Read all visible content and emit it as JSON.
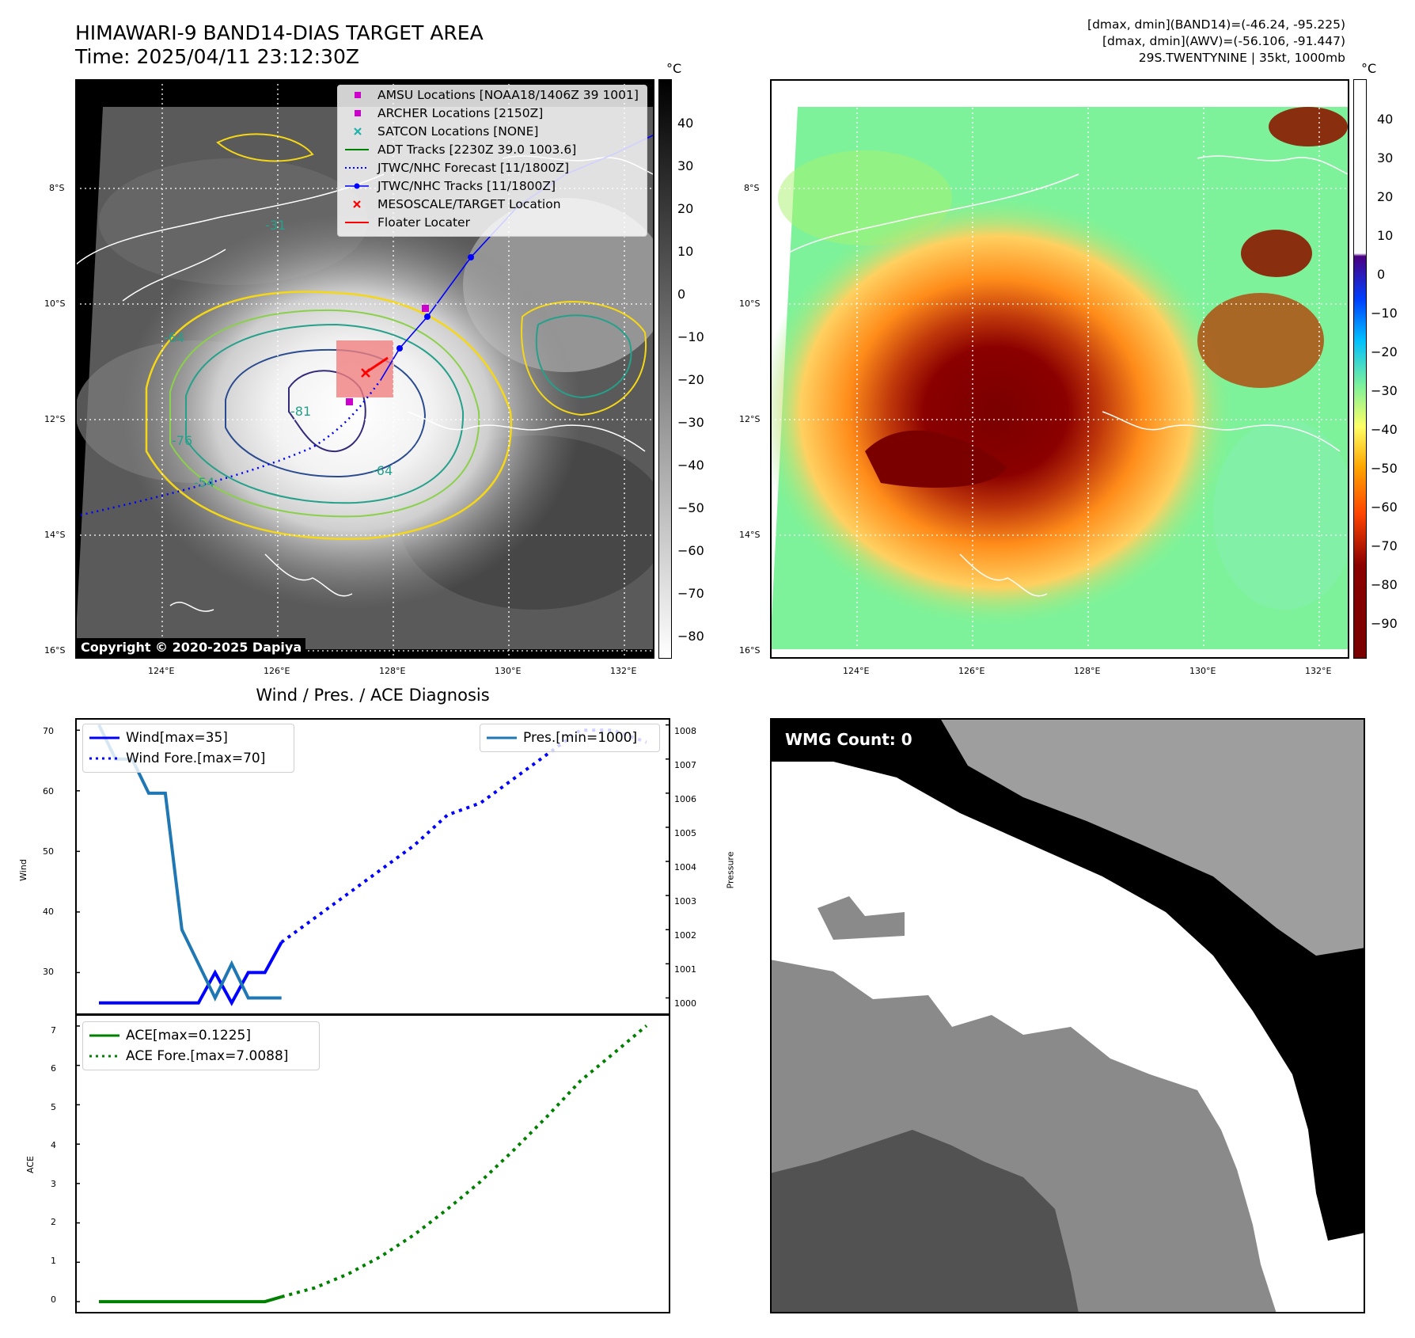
{
  "header": {
    "title_line1": "HIMAWARI-9 BAND14-DIAS TARGET AREA",
    "title_line2": "Time: 2025/04/11 23:12:30Z",
    "info_line1": "[dmax, dmin](BAND14)=(-46.24, -95.225)",
    "info_line2": "[dmax, dmin](AWV)=(-56.106, -91.447)",
    "info_line3": "29S.TWENTYNINE | 35kt, 1000mb"
  },
  "ir_panel": {
    "legend": [
      {
        "label": "AMSU Locations [NOAA18/1406Z 39 1001]",
        "color": "#cc00cc",
        "marker": "square"
      },
      {
        "label": "ARCHER Locations [2150Z]",
        "color": "#cc00cc",
        "marker": "square"
      },
      {
        "label": "SATCON Locations [NONE]",
        "color": "#20b2aa",
        "marker": "x"
      },
      {
        "label": "ADT Tracks [2230Z 39.0 1003.6]",
        "color": "#008000",
        "marker": "line"
      },
      {
        "label": "JTWC/NHC Forecast [11/1800Z]",
        "color": "#0000ff",
        "marker": "dotted"
      },
      {
        "label": "JTWC/NHC Tracks [11/1800Z]",
        "color": "#0000ff",
        "marker": "line-dot"
      },
      {
        "label": "MESOSCALE/TARGET Location",
        "color": "#ff0000",
        "marker": "x"
      },
      {
        "label": "Floater Locater",
        "color": "#ff0000",
        "marker": "line"
      }
    ],
    "copyright": "Copyright © 2020-2025 Dapiya",
    "contour_labels": [
      "-31",
      "-54",
      "-64",
      "-76",
      "-81"
    ],
    "colorbar_unit": "°C",
    "colorbar_ticks": [
      "40",
      "30",
      "20",
      "10",
      "0",
      "−10",
      "−20",
      "−30",
      "−40",
      "−50",
      "−60",
      "−70",
      "−80"
    ]
  },
  "awv_panel": {
    "colorbar_unit": "°C",
    "colorbar_ticks": [
      "40",
      "30",
      "20",
      "10",
      "0",
      "−10",
      "−20",
      "−30",
      "−40",
      "−50",
      "−60",
      "−70",
      "−80",
      "−90"
    ]
  },
  "map_axes": {
    "lat_ticks": [
      "8°S",
      "10°S",
      "12°S",
      "14°S",
      "16°S"
    ],
    "lon_ticks": [
      "124°E",
      "126°E",
      "128°E",
      "130°E",
      "132°E"
    ]
  },
  "diag_panel": {
    "title": "Wind / Pres. / ACE Diagnosis",
    "wind_ylabel": "Wind",
    "pres_ylabel": "Pressure",
    "ace_ylabel": "ACE",
    "wind_legend_1": "Wind[max=35]",
    "wind_legend_2": "Wind Fore.[max=70]",
    "pres_legend": "Pres.[min=1000]",
    "ace_legend_1": "ACE[max=0.1225]",
    "ace_legend_2": "ACE Fore.[max=7.0088]"
  },
  "wmg_panel": {
    "label": "WMG Count: 0"
  },
  "chart_data": [
    {
      "type": "line",
      "title": "Wind / Pres. / ACE Diagnosis",
      "ylabel": "Wind",
      "ylim": [
        23,
        72
      ],
      "yticks": [
        30,
        40,
        50,
        60,
        70
      ],
      "series": [
        {
          "name": "Wind[max=35]",
          "color": "#0000ff",
          "style": "solid",
          "x": [
            0,
            1,
            2,
            3,
            4,
            5,
            6,
            7,
            8,
            9,
            10,
            11
          ],
          "values": [
            25,
            25,
            25,
            25,
            25,
            25,
            25,
            30,
            25,
            30,
            30,
            35
          ]
        },
        {
          "name": "Wind Fore.[max=70]",
          "color": "#0000ff",
          "style": "dotted",
          "x": [
            11,
            13,
            15,
            17,
            19,
            21,
            23,
            25,
            27,
            29,
            31,
            33
          ],
          "values": [
            35,
            39,
            43,
            47,
            51,
            56,
            58,
            62,
            66,
            70,
            70,
            68
          ]
        }
      ]
    },
    {
      "type": "line",
      "ylabel": "Pressure",
      "ylim": [
        999.5,
        1008.2
      ],
      "yticks": [
        1000,
        1001,
        1002,
        1003,
        1004,
        1005,
        1006,
        1007,
        1008
      ],
      "series": [
        {
          "name": "Pres.[min=1000]",
          "color": "#1f77b4",
          "style": "solid",
          "x": [
            0,
            1,
            2,
            3,
            4,
            5,
            6,
            7,
            8,
            9,
            10,
            11
          ],
          "values": [
            1008,
            1007,
            1007,
            1006,
            1006,
            1002,
            1001,
            1000,
            1001,
            1000,
            1000,
            1000
          ]
        }
      ]
    },
    {
      "type": "line",
      "ylabel": "ACE",
      "ylim": [
        -0.3,
        7.3
      ],
      "yticks": [
        0,
        1,
        2,
        3,
        4,
        5,
        6,
        7
      ],
      "series": [
        {
          "name": "ACE[max=0.1225]",
          "color": "#008000",
          "style": "solid",
          "x": [
            0,
            5,
            10,
            11
          ],
          "values": [
            0,
            0,
            0,
            0.1225
          ]
        },
        {
          "name": "ACE Fore.[max=7.0088]",
          "color": "#008000",
          "style": "dotted",
          "x": [
            11,
            13,
            15,
            17,
            19,
            21,
            23,
            25,
            27,
            29,
            31,
            33
          ],
          "values": [
            0.1225,
            0.35,
            0.7,
            1.15,
            1.7,
            2.35,
            3.05,
            3.85,
            4.7,
            5.6,
            6.3,
            7.0088
          ]
        }
      ]
    }
  ]
}
